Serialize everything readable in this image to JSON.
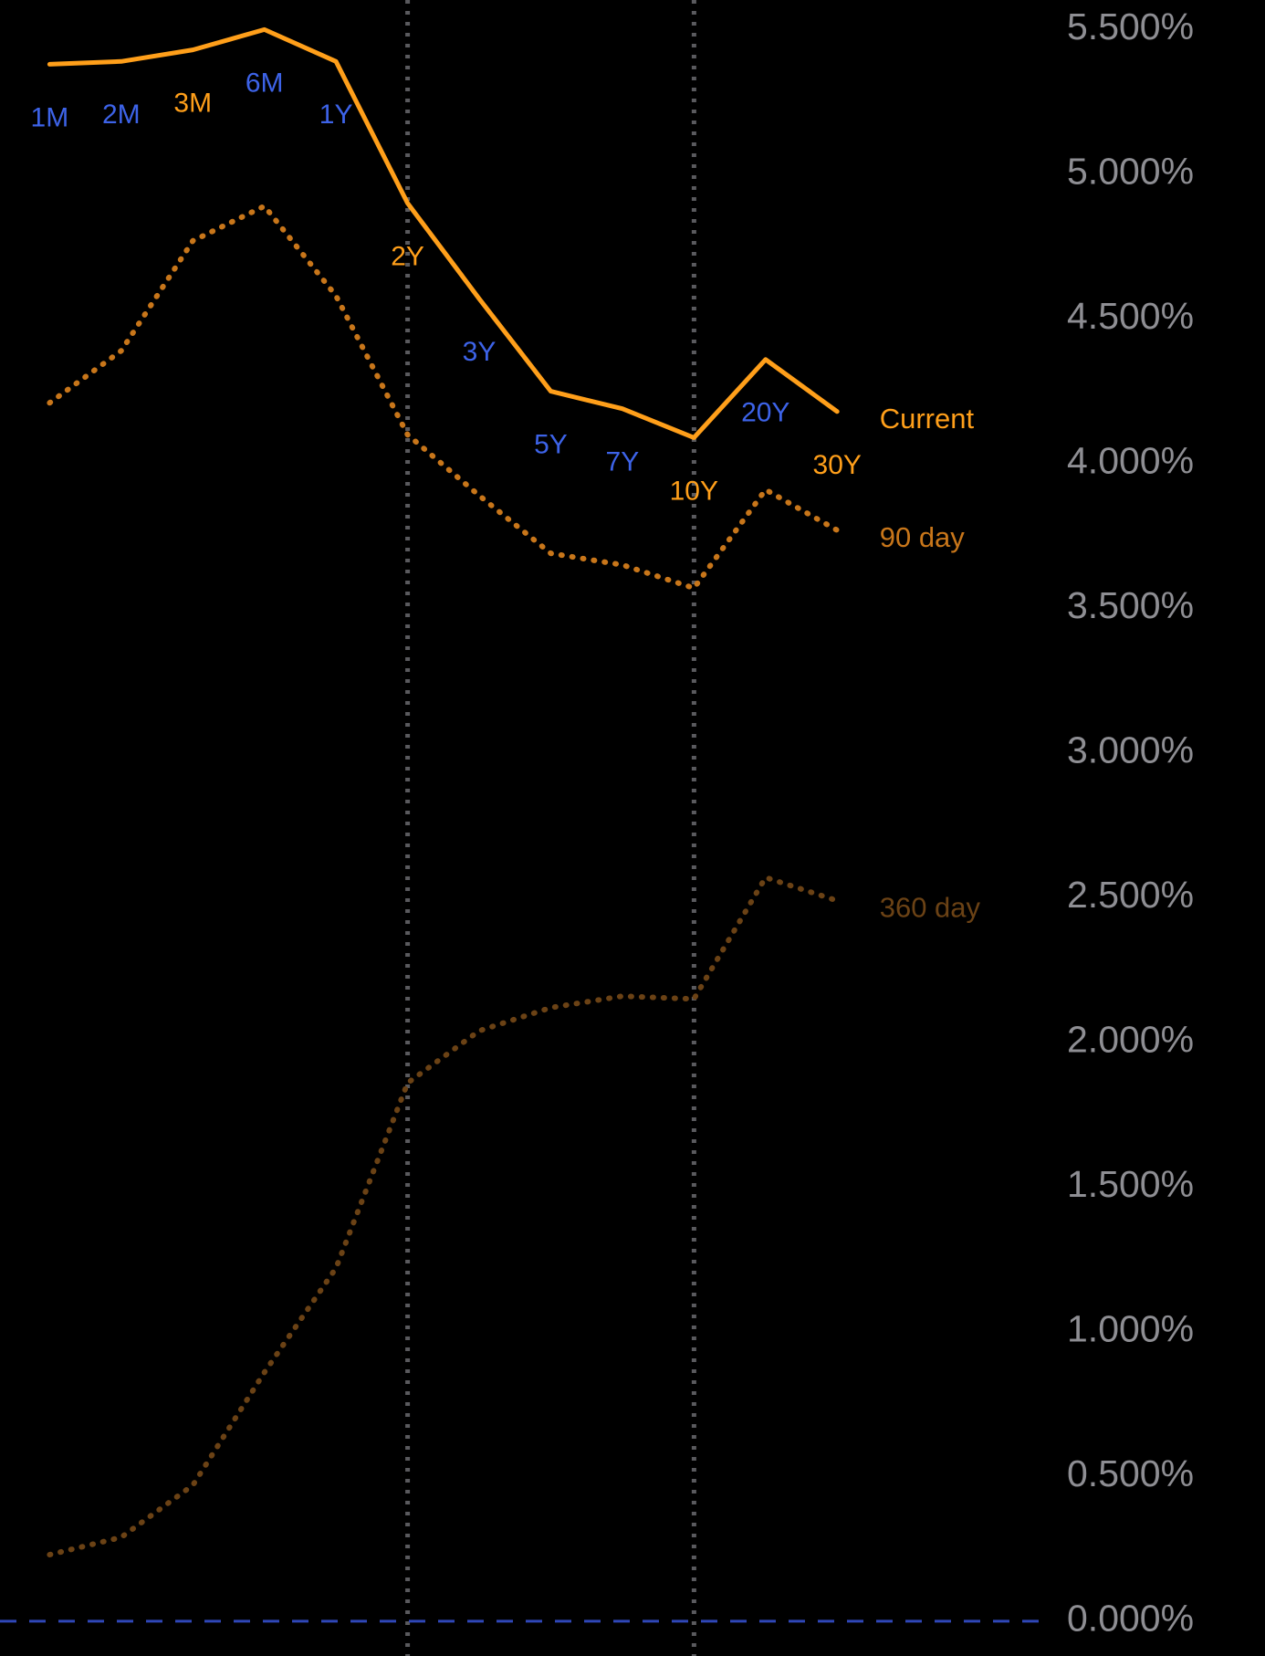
{
  "chart_data": {
    "type": "line",
    "categories": [
      "1M",
      "2M",
      "3M",
      "6M",
      "1Y",
      "2Y",
      "3Y",
      "5Y",
      "7Y",
      "10Y",
      "20Y",
      "30Y"
    ],
    "category_label_colors": [
      "#3d63e8",
      "#3d63e8",
      "#ff9f1a",
      "#3d63e8",
      "#3d63e8",
      "#ff9f1a",
      "#3d63e8",
      "#3d63e8",
      "#3d63e8",
      "#ff9f1a",
      "#3d63e8",
      "#ff9f1a"
    ],
    "series": [
      {
        "name": "Current",
        "color": "#ff9f1a",
        "style": "solid",
        "values": [
          5.38,
          5.39,
          5.43,
          5.5,
          5.39,
          4.9,
          4.57,
          4.25,
          4.19,
          4.09,
          4.36,
          4.18
        ]
      },
      {
        "name": "90 day",
        "color": "#c8761a",
        "style": "dotted",
        "values": [
          4.21,
          4.39,
          4.77,
          4.89,
          4.58,
          4.1,
          3.89,
          3.69,
          3.65,
          3.57,
          3.91,
          3.77
        ]
      },
      {
        "name": "360 day",
        "color": "#6b4215",
        "style": "dotted",
        "values": [
          0.23,
          0.29,
          0.47,
          0.86,
          1.22,
          1.86,
          2.04,
          2.12,
          2.16,
          2.15,
          2.57,
          2.49
        ]
      }
    ],
    "ylim": [
      0,
      5.5
    ],
    "yticks": [
      {
        "value": 0,
        "label": "0.000%"
      },
      {
        "value": 0.5,
        "label": "0.500%"
      },
      {
        "value": 1,
        "label": "1.000%"
      },
      {
        "value": 1.5,
        "label": "1.500%"
      },
      {
        "value": 2,
        "label": "2.000%"
      },
      {
        "value": 2.5,
        "label": "2.500%"
      },
      {
        "value": 3,
        "label": "3.000%"
      },
      {
        "value": 3.5,
        "label": "3.500%"
      },
      {
        "value": 4,
        "label": "4.000%"
      },
      {
        "value": 4.5,
        "label": "4.500%"
      },
      {
        "value": 5,
        "label": "5.000%"
      },
      {
        "value": 5.5,
        "label": "5.500%"
      }
    ]
  }
}
